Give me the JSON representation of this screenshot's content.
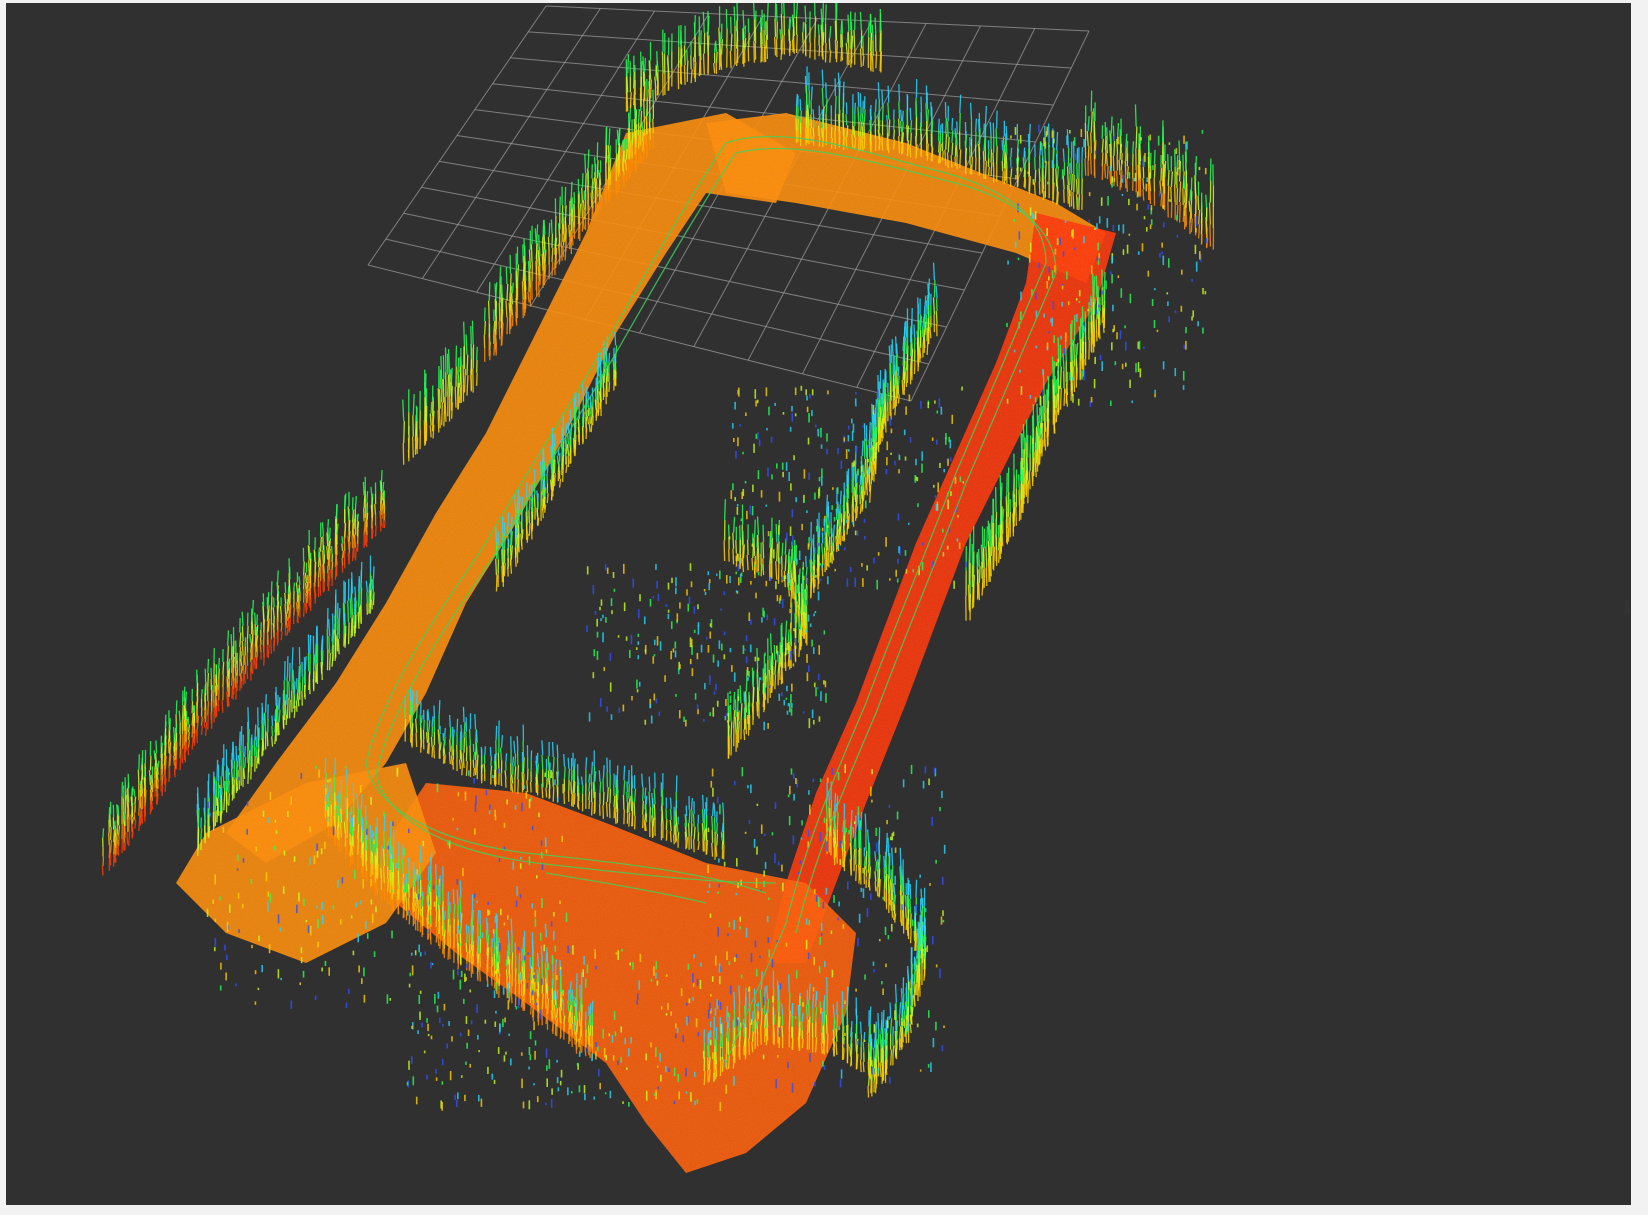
{
  "window": {
    "view_type": "3D point cloud viewer",
    "background_color": "#303030",
    "frame_color": "#f2f2f2"
  },
  "scene": {
    "grid": {
      "visible": true,
      "rows": 10,
      "cols": 10,
      "color": "#9a9a9a"
    },
    "trajectory_color": "#3cd45a",
    "colormap": [
      "#7a00ff",
      "#3050ff",
      "#22d8ff",
      "#22ff55",
      "#c8ff1e",
      "#ffd000",
      "#ff8c00",
      "#ff3a00"
    ],
    "floor_colors": {
      "west": "#ff8a00",
      "east": "#ff3000",
      "south": "#ff5a00"
    }
  }
}
